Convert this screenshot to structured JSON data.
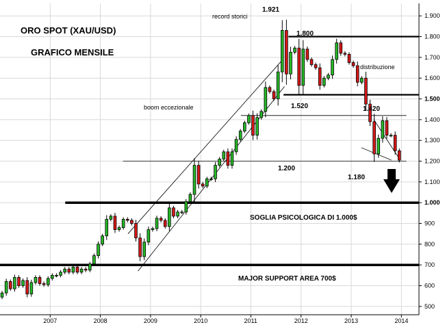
{
  "chart_data": {
    "type": "candlestick",
    "title": "ORO SPOT (XAU/USD)",
    "subtitle": "GRAFICO MENSILE",
    "ylim": [
      460,
      1960
    ],
    "xlim": [
      2006.0,
      2014.35
    ],
    "y_ticks": [
      {
        "v": 1900,
        "t": "1.900",
        "bold": false
      },
      {
        "v": 1800,
        "t": "1.800",
        "bold": false
      },
      {
        "v": 1700,
        "t": "1.700",
        "bold": false
      },
      {
        "v": 1600,
        "t": "1.600",
        "bold": false
      },
      {
        "v": 1500,
        "t": "1.500",
        "bold": true
      },
      {
        "v": 1400,
        "t": "1.400",
        "bold": false
      },
      {
        "v": 1300,
        "t": "1.300",
        "bold": false
      },
      {
        "v": 1200,
        "t": "1.200",
        "bold": false
      },
      {
        "v": 1100,
        "t": "1.100",
        "bold": false
      },
      {
        "v": 1000,
        "t": "1.000",
        "bold": true
      },
      {
        "v": 900,
        "t": "900",
        "bold": false
      },
      {
        "v": 800,
        "t": "800",
        "bold": false
      },
      {
        "v": 700,
        "t": "700",
        "bold": false
      },
      {
        "v": 600,
        "t": "600",
        "bold": false
      },
      {
        "v": 500,
        "t": "500",
        "bold": false
      }
    ],
    "x_ticks": [
      {
        "v": 2007,
        "t": "2007"
      },
      {
        "v": 2008,
        "t": "2008"
      },
      {
        "v": 2009,
        "t": "2009"
      },
      {
        "v": 2010,
        "t": "2010"
      },
      {
        "v": 2011,
        "t": "2011"
      },
      {
        "v": 2012,
        "t": "2012"
      },
      {
        "v": 2013,
        "t": "2013"
      },
      {
        "v": 2014,
        "t": "2014"
      }
    ],
    "ohlc_closes": [
      565,
      620,
      585,
      640,
      600,
      625,
      560,
      615,
      640,
      610,
      605,
      635,
      650,
      650,
      665,
      680,
      665,
      690,
      665,
      680,
      675,
      705,
      745,
      800,
      840,
      920,
      935,
      870,
      880,
      920,
      915,
      900,
      830,
      740,
      810,
      870,
      875,
      925,
      915,
      885,
      975,
      935,
      955,
      955,
      1005,
      1040,
      1180,
      1090,
      1080,
      1115,
      1115,
      1180,
      1210,
      1245,
      1180,
      1245,
      1305,
      1345,
      1385,
      1420,
      1325,
      1410,
      1440,
      1555,
      1535,
      1500,
      1630,
      1830,
      1620,
      1725,
      1745,
      1565,
      1740,
      1690,
      1665,
      1650,
      1565,
      1600,
      1615,
      1690,
      1770,
      1720,
      1715,
      1675,
      1660,
      1580,
      1600,
      1475,
      1390,
      1235,
      1310,
      1395,
      1325,
      1325,
      1250,
      1205
    ],
    "ohlc_start_year": 2006.0,
    "levels": [
      {
        "name": "major-support",
        "value": 700,
        "weight": "heavy",
        "label": "MAJOR SUPPORT AREA 700$"
      },
      {
        "name": "psych-level",
        "value": 1000,
        "weight": "heavy",
        "label": "SOGLIA PSICOLOGICA DI 1.000$"
      },
      {
        "name": "res-1800",
        "value": 1800,
        "weight": "medium",
        "label": "1.800"
      },
      {
        "name": "sup-1520",
        "value": 1520,
        "weight": "medium",
        "label": "1.520"
      },
      {
        "name": "line-1420",
        "value": 1420,
        "weight": "thin",
        "label": "1.420"
      },
      {
        "name": "line-1200",
        "value": 1200,
        "weight": "thin",
        "label": "1.200"
      }
    ],
    "annotations": [
      {
        "name": "record-storici",
        "text": "record storici"
      },
      {
        "name": "peak-1921",
        "text": "1.921"
      },
      {
        "name": "distribuzione",
        "text": "distribuzione"
      },
      {
        "name": "boom-eccezionale",
        "text": "boom eccezionale"
      },
      {
        "name": "low-1180",
        "text": "1.180"
      }
    ],
    "colors": {
      "up_fill": "#27b827",
      "down_fill": "#d81818",
      "line": "#000000",
      "grid": "#d8d8d8",
      "axis": "#000000"
    },
    "grid": true
  }
}
